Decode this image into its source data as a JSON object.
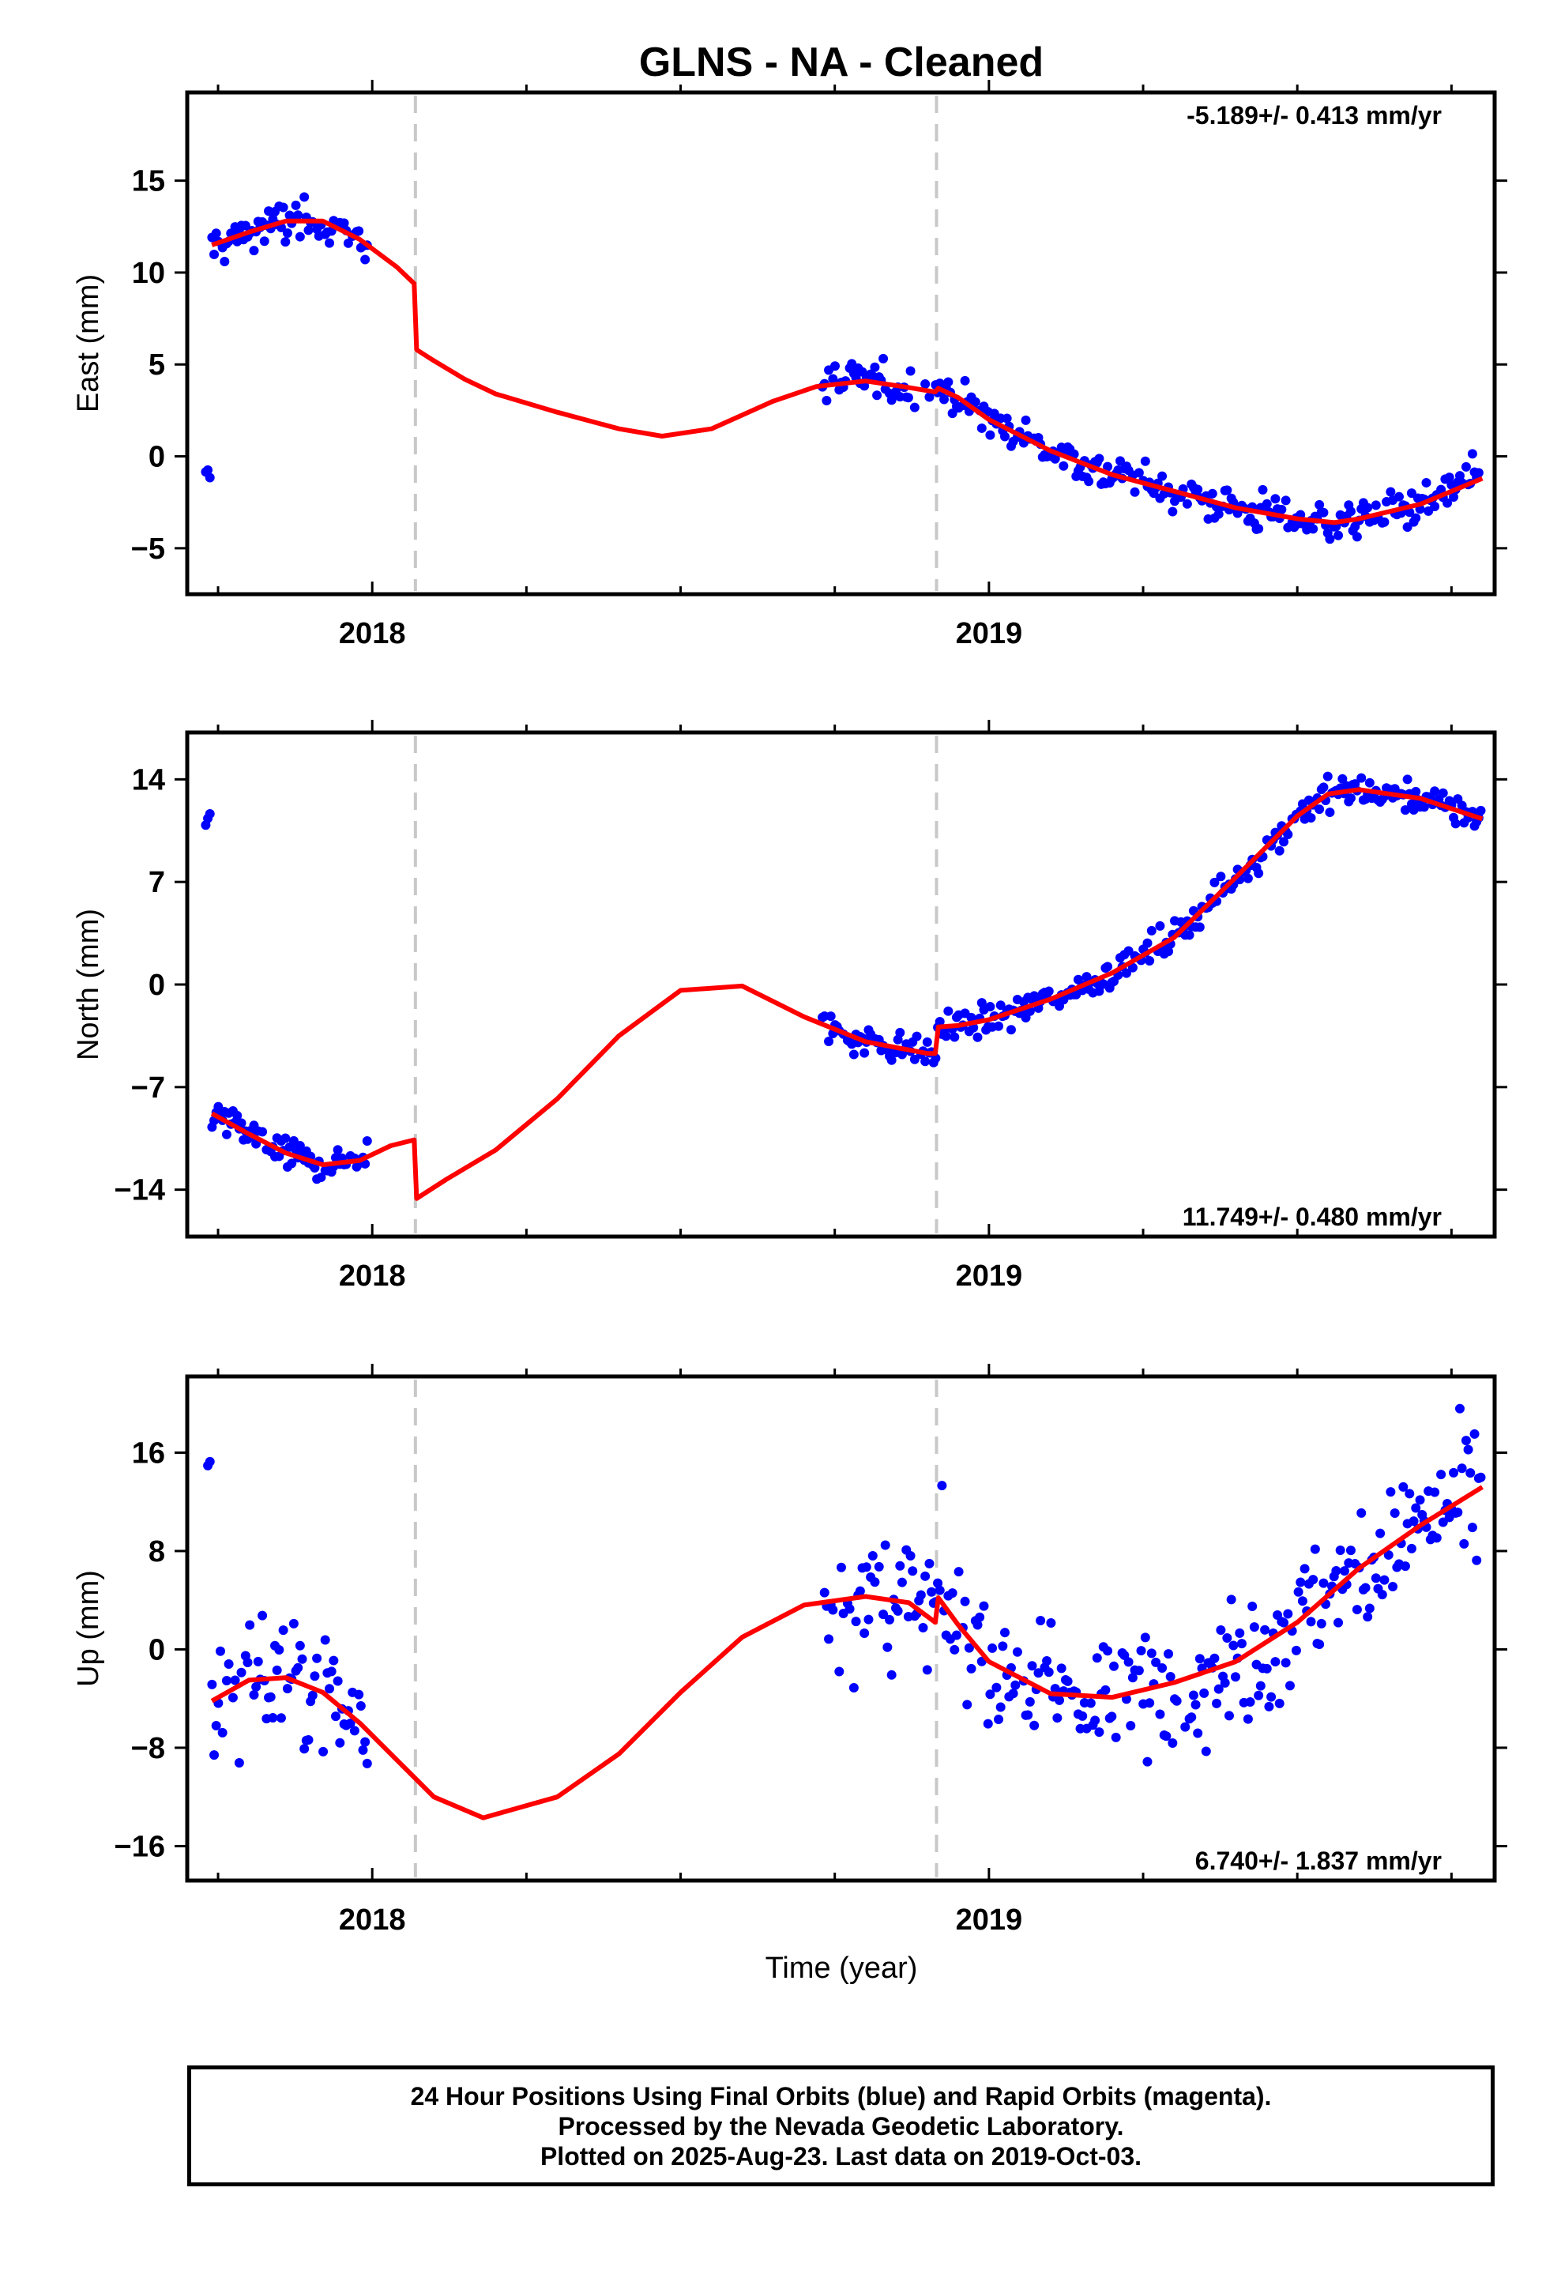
{
  "chart_data": {
    "type": "scatter",
    "title": "GLNS  - NA - Cleaned",
    "xlabel": "Time (year)",
    "xlim": [
      2017.7,
      2019.82
    ],
    "x_tick_labels": [
      "2018",
      "2019"
    ],
    "x_ticks": [
      2018,
      2019
    ],
    "equipment_change_lines": [
      2018.07,
      2018.915
    ],
    "grid": false,
    "panels": [
      {
        "name": "east",
        "ylabel": "East (mm)",
        "ylim": [
          -7.5,
          19.8
        ],
        "yticks": [
          -5,
          0,
          5,
          10,
          15
        ],
        "ytick_labels": [
          "−5",
          "0",
          "5",
          "10",
          "15"
        ],
        "rate": "-5.189+/- 0.413 mm/yr",
        "rate_position": "top-right",
        "model_curve": [
          [
            2017.74,
            11.5
          ],
          [
            2017.8,
            12.2
          ],
          [
            2017.86,
            12.8
          ],
          [
            2017.92,
            12.8
          ],
          [
            2017.98,
            11.8
          ],
          [
            2018.04,
            10.3
          ],
          [
            2018.068,
            9.4
          ],
          [
            2018.072,
            5.8
          ],
          [
            2018.1,
            5.2
          ],
          [
            2018.15,
            4.2
          ],
          [
            2018.2,
            3.4
          ],
          [
            2018.3,
            2.4
          ],
          [
            2018.4,
            1.5
          ],
          [
            2018.47,
            1.1
          ],
          [
            2018.55,
            1.5
          ],
          [
            2018.65,
            3.0
          ],
          [
            2018.72,
            3.8
          ],
          [
            2018.8,
            4.1
          ],
          [
            2018.86,
            3.8
          ],
          [
            2018.913,
            3.5
          ],
          [
            2018.918,
            3.7
          ],
          [
            2018.95,
            3.2
          ],
          [
            2019.0,
            2.0
          ],
          [
            2019.1,
            0.3
          ],
          [
            2019.2,
            -1.0
          ],
          [
            2019.3,
            -1.9
          ],
          [
            2019.4,
            -2.8
          ],
          [
            2019.5,
            -3.4
          ],
          [
            2019.56,
            -3.6
          ],
          [
            2019.6,
            -3.4
          ],
          [
            2019.7,
            -2.6
          ],
          [
            2019.8,
            -1.2
          ]
        ]
      },
      {
        "name": "north",
        "ylabel": "North (mm)",
        "ylim": [
          -17.2,
          17.2
        ],
        "yticks": [
          -14,
          -7,
          0,
          7,
          14
        ],
        "ytick_labels": [
          "−14",
          "−7",
          "0",
          "7",
          "14"
        ],
        "rate": "11.749+/- 0.480 mm/yr",
        "rate_position": "bottom-right",
        "model_curve": [
          [
            2017.74,
            -8.8
          ],
          [
            2017.8,
            -10.2
          ],
          [
            2017.86,
            -11.5
          ],
          [
            2017.92,
            -12.3
          ],
          [
            2017.98,
            -12.0
          ],
          [
            2018.03,
            -11.0
          ],
          [
            2018.068,
            -10.6
          ],
          [
            2018.072,
            -14.6
          ],
          [
            2018.12,
            -13.3
          ],
          [
            2018.2,
            -11.3
          ],
          [
            2018.3,
            -7.8
          ],
          [
            2018.4,
            -3.5
          ],
          [
            2018.5,
            -0.4
          ],
          [
            2018.6,
            -0.1
          ],
          [
            2018.7,
            -2.2
          ],
          [
            2018.8,
            -3.9
          ],
          [
            2018.9,
            -4.7
          ],
          [
            2018.913,
            -4.7
          ],
          [
            2018.918,
            -2.9
          ],
          [
            2018.95,
            -2.8
          ],
          [
            2019.0,
            -2.4
          ],
          [
            2019.1,
            -1.0
          ],
          [
            2019.2,
            0.8
          ],
          [
            2019.3,
            3.2
          ],
          [
            2019.4,
            7.3
          ],
          [
            2019.5,
            11.5
          ],
          [
            2019.55,
            13.0
          ],
          [
            2019.6,
            13.3
          ],
          [
            2019.7,
            12.7
          ],
          [
            2019.8,
            11.3
          ]
        ]
      },
      {
        "name": "up",
        "ylabel": "Up (mm)",
        "ylim": [
          -18.8,
          22.2
        ],
        "yticks": [
          -16,
          -8,
          0,
          8,
          16
        ],
        "ytick_labels": [
          "−16",
          "−8",
          "0",
          "8",
          "16"
        ],
        "rate": "6.740+/- 1.837 mm/yr",
        "rate_position": "bottom-right",
        "model_curve": [
          [
            2017.74,
            -4.2
          ],
          [
            2017.8,
            -2.5
          ],
          [
            2017.86,
            -2.3
          ],
          [
            2017.92,
            -3.5
          ],
          [
            2017.98,
            -6.0
          ],
          [
            2018.05,
            -9.5
          ],
          [
            2018.1,
            -12.0
          ],
          [
            2018.18,
            -13.7
          ],
          [
            2018.3,
            -12.0
          ],
          [
            2018.4,
            -8.5
          ],
          [
            2018.5,
            -3.5
          ],
          [
            2018.6,
            1.0
          ],
          [
            2018.7,
            3.6
          ],
          [
            2018.8,
            4.3
          ],
          [
            2018.87,
            3.8
          ],
          [
            2018.913,
            2.2
          ],
          [
            2018.918,
            4.2
          ],
          [
            2018.95,
            2.0
          ],
          [
            2019.0,
            -1.0
          ],
          [
            2019.1,
            -3.6
          ],
          [
            2019.2,
            -3.9
          ],
          [
            2019.3,
            -2.7
          ],
          [
            2019.4,
            -1.0
          ],
          [
            2019.5,
            2.2
          ],
          [
            2019.6,
            6.6
          ],
          [
            2019.7,
            10.1
          ],
          [
            2019.8,
            13.2
          ]
        ]
      }
    ],
    "segments": [
      [
        2017.73,
        2017.995
      ],
      [
        2018.73,
        2019.8
      ]
    ],
    "point_color": "#0000ff",
    "model_color": "#ff0000",
    "change_line_color": "#c8c8c8"
  },
  "footer": {
    "line1": "24 Hour Positions Using Final Orbits (blue) and Rapid Orbits (magenta).",
    "line2": "Processed by the Nevada Geodetic Laboratory.",
    "line3": "Plotted on 2025-Aug-23. Last data on 2019-Oct-03."
  }
}
